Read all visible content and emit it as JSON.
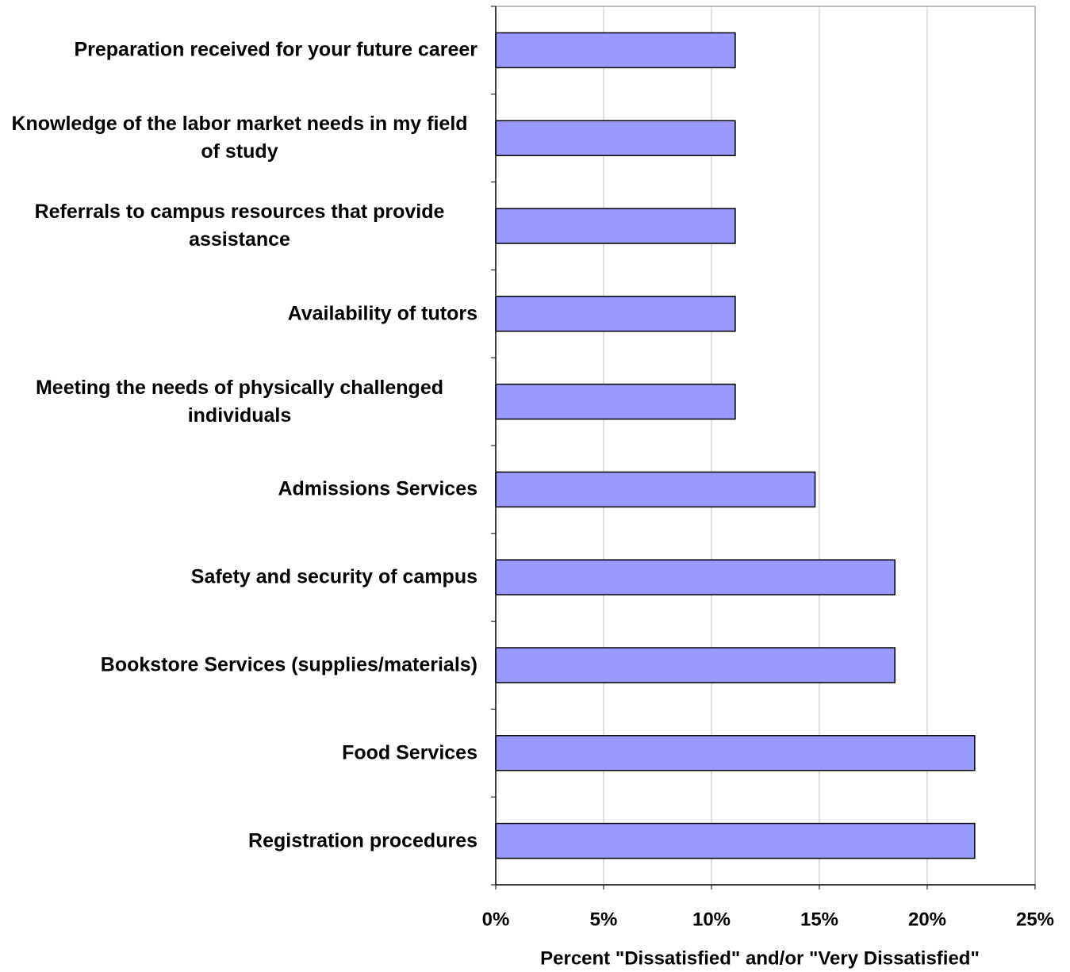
{
  "chart_data": {
    "type": "bar",
    "orientation": "horizontal",
    "xlabel": "Percent \"Dissatisfied\" and/or \"Very Dissatisfied\"",
    "categories": [
      "Preparation received for your future career",
      "Knowledge of the labor market needs in my field of study",
      "Referrals to campus resources that provide assistance",
      "Availability of tutors",
      "Meeting the needs of physically challenged individuals",
      "Admissions Services",
      "Safety and security of campus",
      "Bookstore Services (supplies/materials)",
      "Food Services",
      "Registration procedures"
    ],
    "values": [
      11.1,
      11.1,
      11.1,
      11.1,
      11.1,
      14.8,
      18.5,
      18.5,
      22.2,
      22.2
    ],
    "color": "#9999ff",
    "xlim": [
      0,
      25
    ],
    "xticks": [
      {
        "value": 0,
        "label": "0%"
      },
      {
        "value": 5,
        "label": "5%"
      },
      {
        "value": 10,
        "label": "10%"
      },
      {
        "value": 15,
        "label": "15%"
      },
      {
        "value": 20,
        "label": "20%"
      },
      {
        "value": 25,
        "label": "25%"
      }
    ],
    "grid": true
  }
}
